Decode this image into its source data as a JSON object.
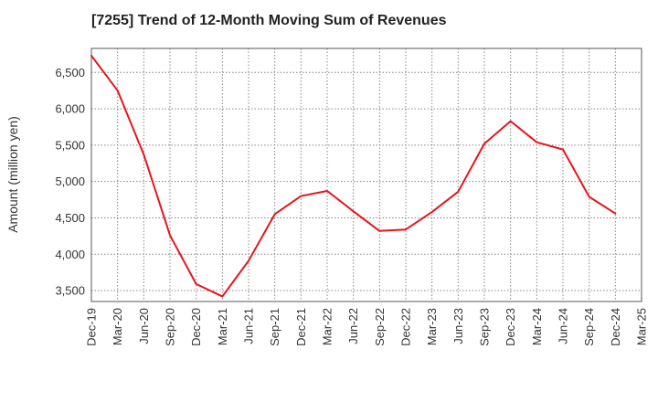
{
  "chart_data": {
    "type": "line",
    "title": "[7255]  Trend of 12-Month Moving Sum of Revenues",
    "xlabel": "",
    "ylabel": "Amount (million yen)",
    "x": [
      "Dec-19",
      "Mar-20",
      "Jun-20",
      "Sep-20",
      "Dec-20",
      "Mar-21",
      "Jun-21",
      "Sep-21",
      "Dec-21",
      "Mar-22",
      "Jun-22",
      "Sep-22",
      "Dec-22",
      "Mar-23",
      "Jun-23",
      "Sep-23",
      "Dec-23",
      "Mar-24",
      "Jun-24",
      "Sep-24",
      "Dec-24",
      "Mar-25"
    ],
    "series": [
      {
        "color": "#e8141b",
        "values": [
          6730,
          6250,
          5370,
          4260,
          3590,
          3420,
          3910,
          4550,
          4800,
          4870,
          4590,
          4320,
          4340,
          4580,
          4860,
          5520,
          5830,
          5540,
          5440,
          4790,
          4560,
          null
        ]
      }
    ],
    "yticks": [
      3500,
      4000,
      4500,
      5000,
      5500,
      6000,
      6500
    ],
    "ytick_labels": [
      "3,500",
      "4,000",
      "4,500",
      "5,000",
      "5,500",
      "6,000",
      "6,500"
    ],
    "ylim": [
      3350,
      6830
    ],
    "grid": true
  }
}
